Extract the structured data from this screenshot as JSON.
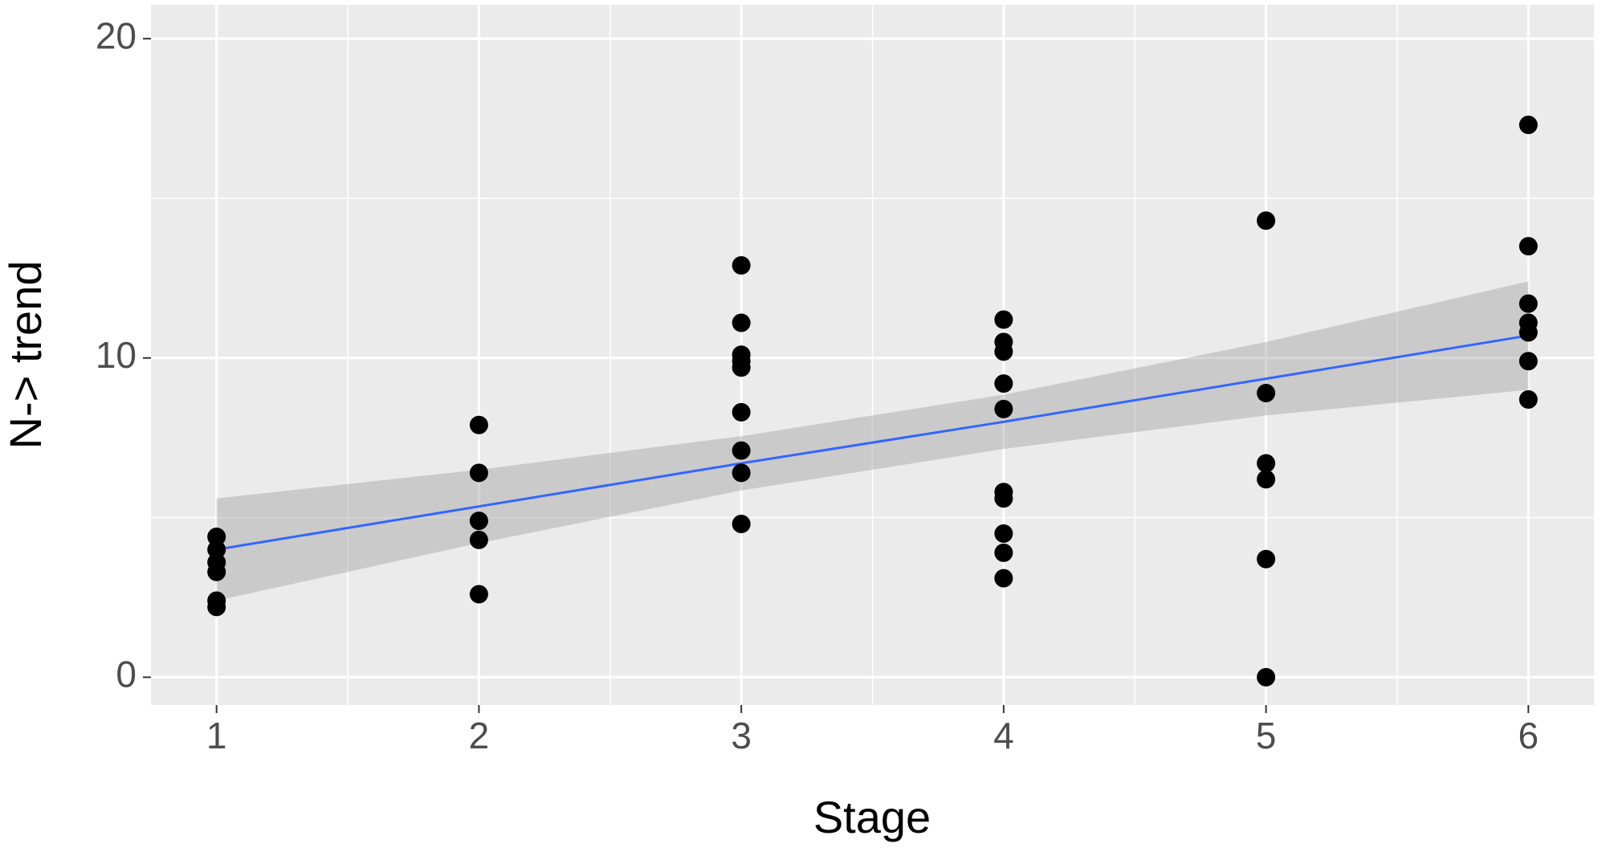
{
  "chart_data": {
    "type": "scatter",
    "x_label": "Stage",
    "y_label": "N->   trend",
    "xlim": [
      0.75,
      6.25
    ],
    "ylim": [
      -0.87,
      21.06
    ],
    "xticks": [
      1,
      2,
      3,
      4,
      5,
      6
    ],
    "yticks": [
      0,
      10,
      20
    ],
    "minor_xticks": [
      1.5,
      2.5,
      3.5,
      4.5,
      5.5
    ],
    "minor_yticks": [
      5,
      15
    ],
    "grid": true,
    "background": "#ebebeb",
    "series": [
      {
        "type": "scatter",
        "color": "#000000",
        "x": [
          1,
          1,
          1,
          1,
          1,
          1,
          2,
          2,
          2,
          2,
          2,
          3,
          3,
          3,
          3,
          3,
          3,
          3,
          3,
          3,
          4,
          4,
          4,
          4,
          4,
          4,
          4,
          4,
          4,
          4,
          5,
          5,
          5,
          5,
          5,
          5,
          6,
          6,
          6,
          6,
          6,
          6,
          6
        ],
        "values": [
          4.4,
          4.0,
          3.6,
          3.3,
          2.4,
          2.2,
          7.9,
          6.4,
          4.9,
          4.3,
          2.6,
          12.9,
          11.1,
          10.1,
          9.9,
          9.7,
          8.3,
          7.1,
          6.4,
          4.8,
          11.2,
          10.5,
          10.2,
          9.2,
          8.4,
          5.8,
          5.6,
          4.5,
          3.9,
          3.1,
          14.3,
          8.9,
          6.7,
          6.2,
          3.7,
          0,
          17.3,
          13.5,
          11.7,
          11.1,
          10.8,
          9.9,
          8.7
        ]
      },
      {
        "type": "smooth",
        "color": "#3366ff",
        "band_color": "#999999",
        "x": [
          1,
          2,
          3,
          4,
          5,
          6
        ],
        "values": [
          4.0,
          5.35,
          6.7,
          8.0,
          9.35,
          10.7
        ],
        "lower": [
          2.4,
          4.2,
          5.85,
          7.15,
          8.2,
          9.0
        ],
        "upper": [
          5.6,
          6.5,
          7.55,
          8.85,
          10.5,
          12.4
        ]
      }
    ]
  }
}
